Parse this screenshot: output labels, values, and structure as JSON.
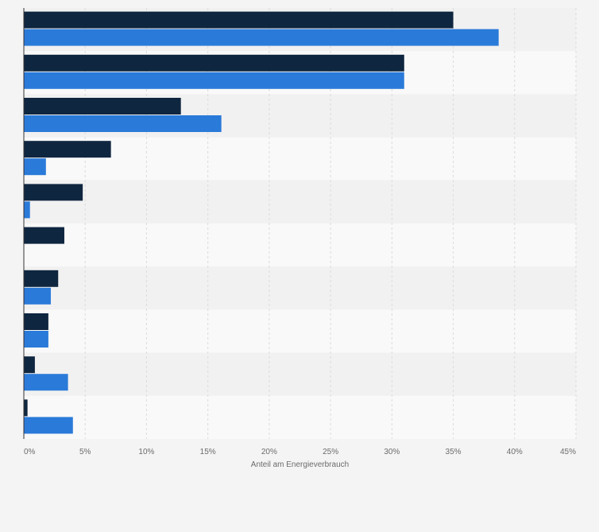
{
  "chart_data": {
    "type": "bar",
    "orientation": "horizontal",
    "xlabel": "Anteil am Energieverbrauch",
    "xlim": [
      0,
      45
    ],
    "xticks": [
      0,
      5,
      10,
      15,
      20,
      25,
      30,
      35,
      40,
      45
    ],
    "xtick_labels": [
      "0%",
      "5%",
      "10%",
      "15%",
      "20%",
      "25%",
      "30%",
      "35%",
      "40%",
      "45%"
    ],
    "grid": true,
    "categories": [
      "",
      "",
      "",
      "",
      "",
      "",
      "",
      "",
      "",
      ""
    ],
    "series": [
      {
        "color": "#0f2640",
        "values": [
          35.0,
          31.0,
          12.8,
          7.1,
          4.8,
          3.3,
          2.8,
          2.0,
          0.9,
          0.3
        ]
      },
      {
        "color": "#2a7ad9",
        "values": [
          38.7,
          31.0,
          16.1,
          1.8,
          0.5,
          0.0,
          2.2,
          2.0,
          3.6,
          4.0
        ]
      }
    ]
  },
  "colors": {
    "page_background": "#f4f4f4",
    "band_dark": "#f1f1f1",
    "band_light": "#f9f9f9",
    "gridline": "#dcdcdc",
    "axis": "#333333"
  }
}
